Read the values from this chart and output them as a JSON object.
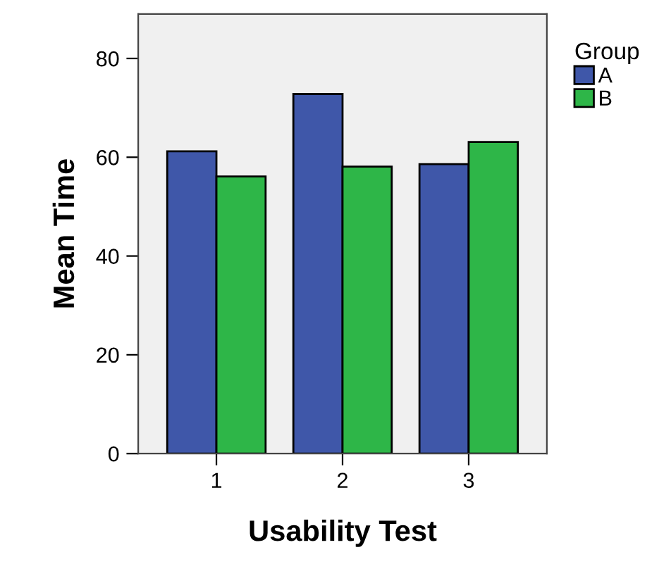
{
  "chart_data": {
    "type": "bar",
    "xlabel": "Usability Test",
    "ylabel": "Mean Time",
    "legend_title": "Group",
    "categories": [
      "1",
      "2",
      "3"
    ],
    "series": [
      {
        "name": "A",
        "color": "#3f57a9",
        "values": [
          61.2,
          72.8,
          58.6
        ]
      },
      {
        "name": "B",
        "color": "#2eb648",
        "values": [
          56.1,
          58.1,
          63.1
        ]
      }
    ],
    "ylim": [
      0,
      89
    ],
    "yticks": [
      0,
      20,
      40,
      60,
      80
    ],
    "grid": false,
    "legend": "top right"
  }
}
